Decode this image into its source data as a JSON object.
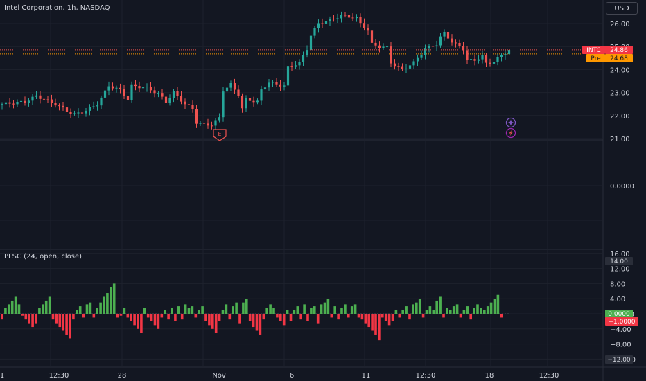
{
  "header": {
    "title": "Intel Corporation, 1h, NASDAQ",
    "currency": "USD"
  },
  "indicator": {
    "label": "PLSC (24, open, close)"
  },
  "price_labels": {
    "symbol": "INTC",
    "last": "24.86",
    "pre_tag": "Pre",
    "pre_value": "24.68"
  },
  "osc_labels": {
    "upper": "14.00",
    "pos": "0.0000",
    "neg": "−1.0000",
    "lower": "−12.00"
  },
  "markers": {
    "earnings": "E"
  },
  "colors": {
    "up": "#26a69a",
    "down": "#ef5350",
    "hist_up": "#4caf50",
    "hist_down": "#f23645",
    "pre": "#ff9800",
    "purple": "#9c27b0",
    "background": "#131722"
  },
  "chart_data": [
    {
      "type": "candlestick",
      "title": "Intel Corporation, 1h, NASDAQ",
      "yticks": [
        "26.00",
        "25.00",
        "24.00",
        "23.00",
        "22.00",
        "21.00"
      ],
      "ylim": [
        21.0,
        26.3
      ],
      "x_ticks": [
        "1",
        "12:30",
        "28",
        "Nov",
        "6",
        "11",
        "12:30",
        "18",
        "12:30"
      ],
      "last_price": 24.86,
      "pre_price": 24.68,
      "close_path": [
        [
          0,
          22.5
        ],
        [
          6,
          22.6
        ],
        [
          9,
          22.85
        ],
        [
          14,
          22.5
        ],
        [
          16,
          22.3
        ],
        [
          17,
          22.2
        ],
        [
          19,
          22.05
        ],
        [
          21,
          22.15
        ],
        [
          23,
          22.3
        ],
        [
          25,
          22.5
        ],
        [
          28,
          23.3
        ],
        [
          31,
          23.1
        ],
        [
          33,
          22.7
        ],
        [
          34,
          23.3
        ],
        [
          38,
          23.2
        ],
        [
          41,
          22.95
        ],
        [
          43,
          22.6
        ],
        [
          45,
          23.0
        ],
        [
          48,
          22.5
        ],
        [
          50,
          22.3
        ],
        [
          51,
          21.7
        ],
        [
          53,
          21.6
        ],
        [
          55,
          21.6
        ],
        [
          57,
          21.9
        ],
        [
          58,
          23.1
        ],
        [
          60,
          23.35
        ],
        [
          62,
          22.9
        ],
        [
          63,
          22.3
        ],
        [
          64,
          22.7
        ],
        [
          67,
          22.6
        ],
        [
          68,
          23.1
        ],
        [
          70,
          23.45
        ],
        [
          72,
          23.35
        ],
        [
          74,
          23.3
        ],
        [
          75,
          24.1
        ],
        [
          78,
          24.3
        ],
        [
          80,
          24.9
        ],
        [
          81,
          25.5
        ],
        [
          83,
          26.0
        ],
        [
          86,
          26.15
        ],
        [
          89,
          26.35
        ],
        [
          93,
          26.25
        ],
        [
          94,
          26.0
        ],
        [
          96,
          25.7
        ],
        [
          97,
          25.1
        ],
        [
          99,
          25.0
        ],
        [
          101,
          24.95
        ],
        [
          102,
          24.3
        ],
        [
          105,
          24.0
        ],
        [
          108,
          24.3
        ],
        [
          110,
          24.7
        ],
        [
          111,
          24.9
        ],
        [
          114,
          25.1
        ],
        [
          115,
          25.4
        ],
        [
          116,
          25.6
        ],
        [
          118,
          25.2
        ],
        [
          121,
          24.9
        ],
        [
          122,
          24.4
        ],
        [
          124,
          24.4
        ],
        [
          126,
          24.6
        ],
        [
          127,
          24.25
        ],
        [
          129,
          24.35
        ],
        [
          131,
          24.6
        ],
        [
          133,
          24.86
        ]
      ],
      "events": [
        "Earnings (E)",
        "Dividend"
      ]
    },
    {
      "type": "bar",
      "title": "PLSC (24, open, close)",
      "yticks": [
        "16.00",
        "12.00",
        "8.00",
        "4.00",
        "0.0000",
        "−4.00",
        "−8.00",
        "−12.00"
      ],
      "ylim": [
        -12,
        16
      ],
      "values": [
        -1.5,
        1.5,
        2.5,
        3.5,
        4.5,
        2.5,
        -0.5,
        -1.5,
        -2.5,
        -3.5,
        -2.5,
        1.5,
        2.5,
        3.5,
        4.5,
        -1.5,
        -2.5,
        -3.5,
        -4.5,
        -5.5,
        -6.5,
        -1.5,
        1.0,
        2.0,
        -1.0,
        2.5,
        3.0,
        -1.0,
        1.5,
        3.0,
        4.5,
        5.5,
        7.0,
        8.0,
        -1.0,
        -0.5,
        1.5,
        -1.0,
        -2.0,
        -3.0,
        -4.0,
        -5.0,
        1.5,
        -1.0,
        -2.0,
        -3.0,
        -4.0,
        -1.0,
        1.0,
        -1.5,
        1.5,
        -2.0,
        2.0,
        -1.5,
        2.5,
        1.5,
        2.0,
        -1.0,
        1.0,
        2.0,
        -2.0,
        -3.0,
        -4.0,
        -5.0,
        -2.0,
        1.0,
        2.5,
        -1.5,
        2.0,
        3.0,
        -2.5,
        3.0,
        4.0,
        -2.0,
        -3.5,
        -4.5,
        -5.5,
        -1.5,
        1.5,
        2.5,
        1.5,
        -1.0,
        -2.0,
        -3.0,
        1.0,
        -2.0,
        1.0,
        2.0,
        -1.5,
        2.5,
        -2.0,
        1.5,
        2.0,
        -2.5,
        2.5,
        3.0,
        4.0,
        -1.0,
        2.0,
        -1.5,
        1.5,
        2.5,
        -1.0,
        2.0,
        2.5,
        -1.0,
        -1.5,
        -2.5,
        -3.5,
        -4.5,
        -5.5,
        -7.0,
        -1.0,
        -2.0,
        -3.0,
        -2.0,
        1.0,
        -1.0,
        1.0,
        2.0,
        -1.5,
        2.5,
        3.0,
        4.0,
        -1.0,
        1.0,
        2.0,
        1.0,
        3.5,
        4.5,
        -1.0,
        1.5,
        1.0,
        2.0,
        2.5,
        -1.0,
        1.0,
        2.0,
        -1.5,
        1.5,
        2.5,
        1.5,
        1.0,
        2.0,
        3.0,
        4.0,
        5.0,
        -1.0
      ]
    }
  ]
}
